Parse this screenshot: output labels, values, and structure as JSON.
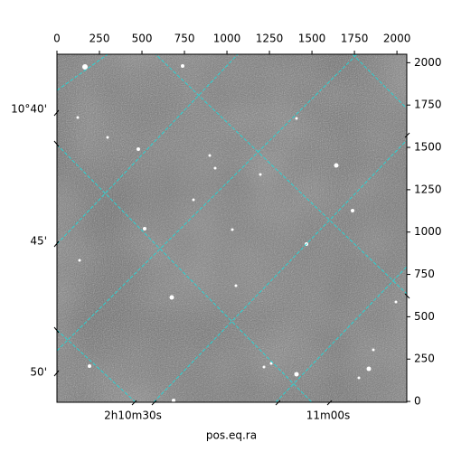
{
  "chart_data": {
    "type": "image",
    "xlabel": "pos.eq.ra",
    "xlim": [
      0,
      2058
    ],
    "xticks": [
      0,
      250,
      500,
      750,
      1000,
      1250,
      1500,
      1750,
      2000
    ],
    "y2lim": [
      -5,
      2050
    ],
    "y2ticks": [
      0,
      250,
      500,
      750,
      1000,
      1250,
      1500,
      1750,
      2000
    ],
    "ra_ticks": [
      "2h10m30s",
      "11m00s"
    ],
    "dec_ticks": [
      "10°40'",
      "45'",
      "50'"
    ],
    "grid": true
  }
}
